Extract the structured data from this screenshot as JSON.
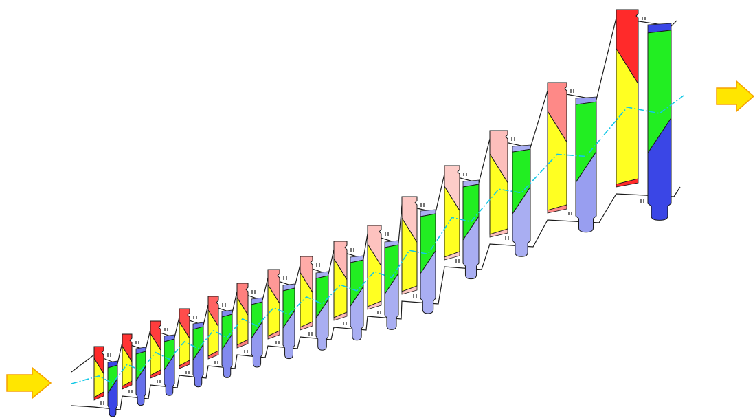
{
  "diagram": {
    "kind": "turbine-blade-path-cross-section",
    "flow_direction": "left-to-right",
    "stage_count": 15,
    "colors": {
      "stator_hub_solid": "#ff2a2a",
      "stator_hub_fade": "#fde8e4",
      "stator_airfoil": "#ffff22",
      "rotor_airfoil": "#22ee22",
      "rotor_root_solid": "#3a46e6",
      "rotor_root_fade": "#a9aef2",
      "flow_arrow": "#ffe600",
      "flow_arrow_edge": "#f5a000",
      "centerline": "#14c8e6",
      "outline": "#1a1a1a"
    },
    "icons": {
      "inlet": "arrow-right-icon",
      "outlet": "arrow-right-icon"
    }
  }
}
